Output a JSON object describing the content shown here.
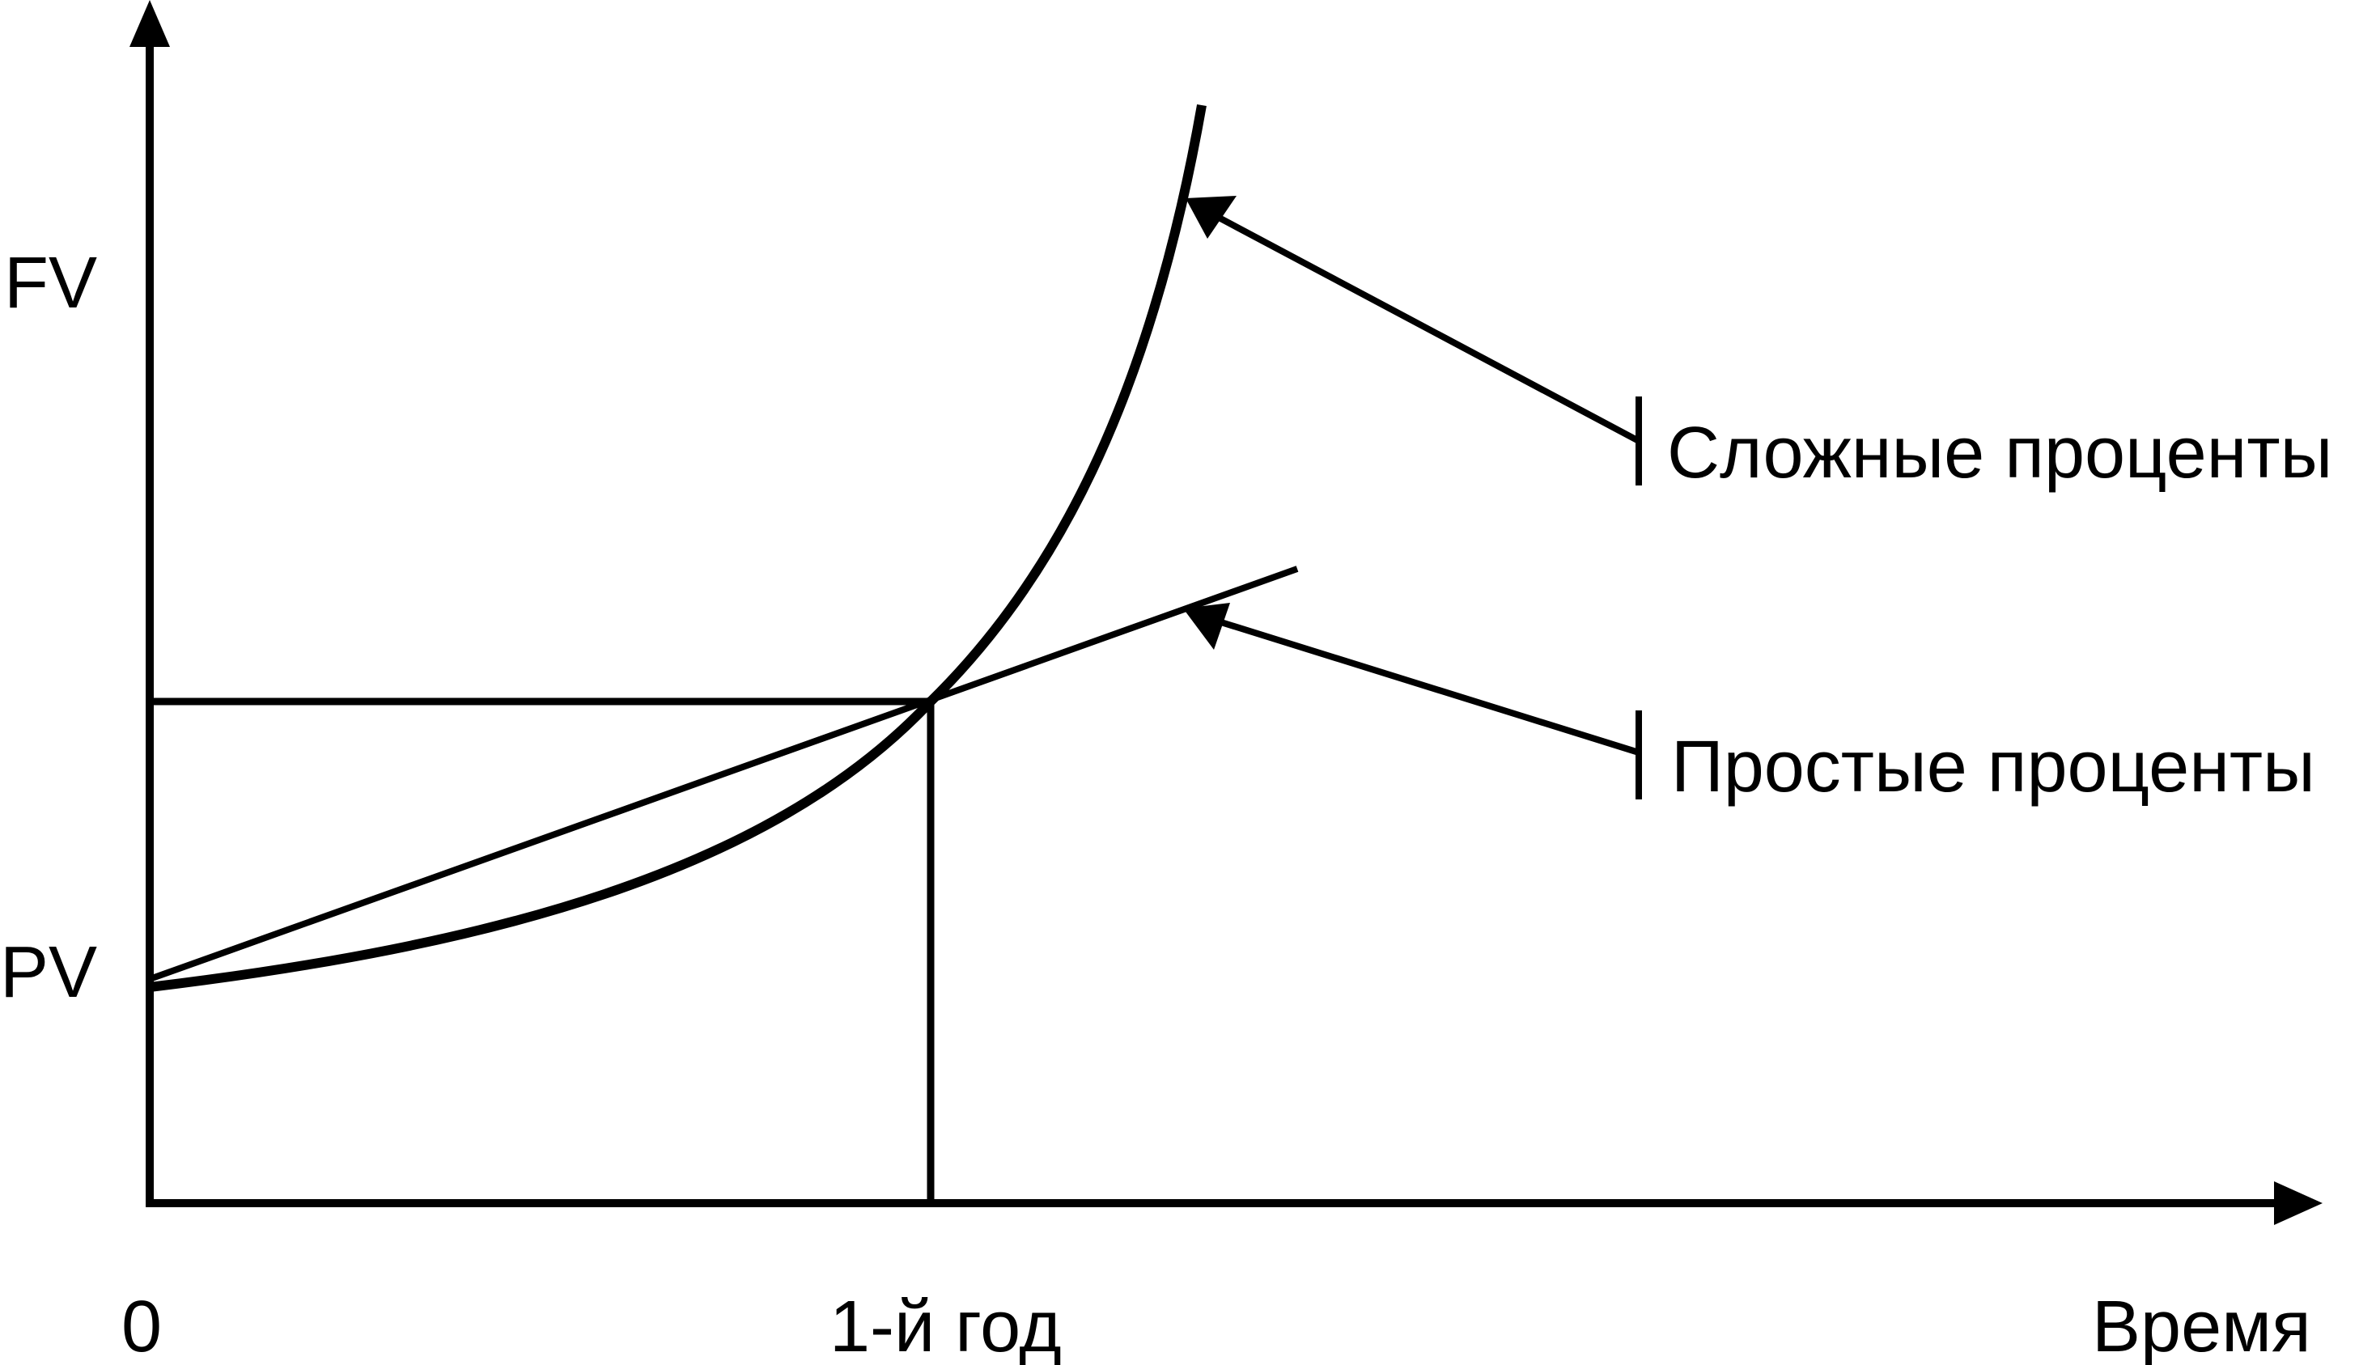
{
  "labels": {
    "fv": "FV",
    "pv": "PV",
    "origin": "0",
    "year": "1-й год",
    "time": "Время"
  },
  "legend": {
    "compound": "Сложные проценты",
    "simple": "Простые проценты"
  },
  "colors": {
    "stroke": "#000000",
    "background": "#ffffff"
  }
}
